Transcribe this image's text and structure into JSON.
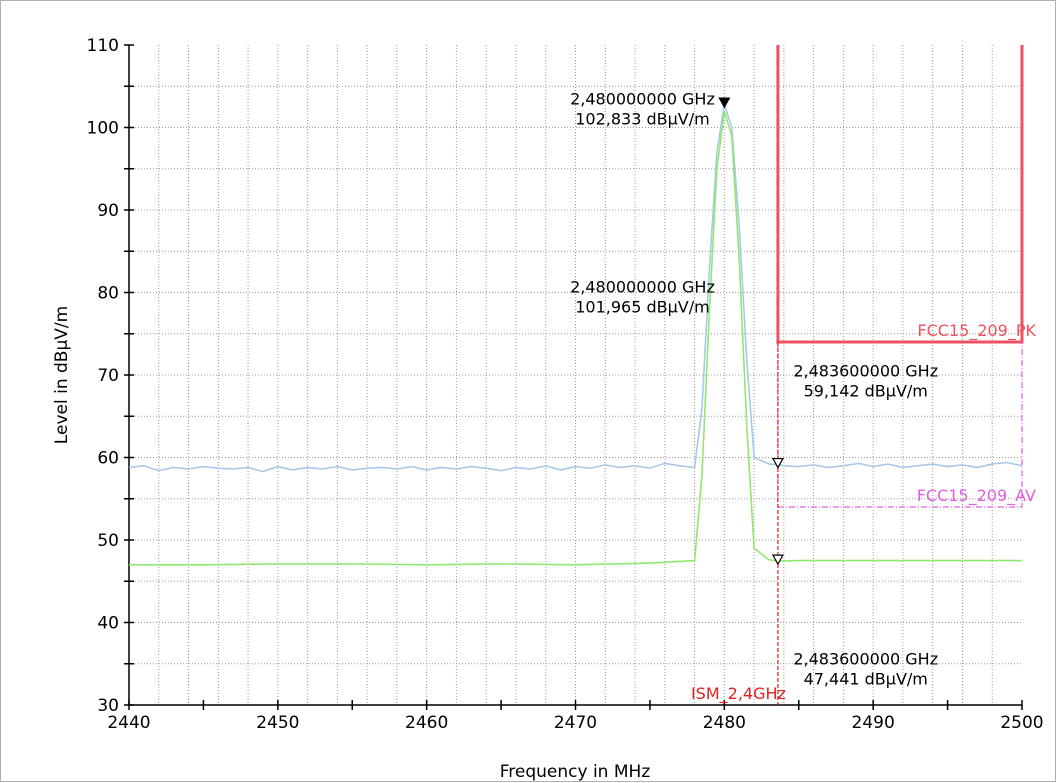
{
  "chart_data": {
    "type": "line",
    "title": "",
    "xlabel": "Frequency in MHz",
    "ylabel": "Level in dBµV/m",
    "xlim": [
      2440,
      2500
    ],
    "ylim": [
      30,
      110
    ],
    "x_ticks": [
      2440,
      2450,
      2460,
      2470,
      2480,
      2490,
      2500
    ],
    "y_ticks": [
      30,
      40,
      50,
      60,
      70,
      80,
      90,
      100,
      110
    ],
    "grid": true,
    "colors": {
      "peak": "#a8c8ea",
      "average": "#90e870",
      "fcc_pk": "#f05060",
      "fcc_av": "#e060e0",
      "ism": "#e02020"
    },
    "series": [
      {
        "key": "peak",
        "x": [
          2440,
          2441,
          2442,
          2443,
          2444,
          2445,
          2446,
          2447,
          2448,
          2449,
          2450,
          2451,
          2452,
          2453,
          2454,
          2455,
          2456,
          2457,
          2458,
          2459,
          2460,
          2461,
          2462,
          2463,
          2464,
          2465,
          2466,
          2467,
          2468,
          2469,
          2470,
          2471,
          2472,
          2473,
          2474,
          2475,
          2476,
          2477,
          2478,
          2478.5,
          2479,
          2479.5,
          2480,
          2480.5,
          2481,
          2481.5,
          2482,
          2483,
          2483.6,
          2484,
          2485,
          2486,
          2487,
          2488,
          2489,
          2490,
          2491,
          2492,
          2493,
          2494,
          2495,
          2496,
          2497,
          2498,
          2499,
          2500
        ],
        "y": [
          58.8,
          59.0,
          58.4,
          58.8,
          58.6,
          58.9,
          58.7,
          58.6,
          58.8,
          58.3,
          58.9,
          58.5,
          58.8,
          58.6,
          58.9,
          58.5,
          58.7,
          58.8,
          58.6,
          58.9,
          58.5,
          58.8,
          58.6,
          58.9,
          58.7,
          58.4,
          58.8,
          58.6,
          59.0,
          58.5,
          58.9,
          58.7,
          59.1,
          58.8,
          59.0,
          58.7,
          59.3,
          59.0,
          58.8,
          66.0,
          83.0,
          97.0,
          102.8,
          100.0,
          88.0,
          72.0,
          60.0,
          59.2,
          59.142,
          59.0,
          58.9,
          59.1,
          58.8,
          59.0,
          59.3,
          58.9,
          59.2,
          58.8,
          59.0,
          59.2,
          58.9,
          59.1,
          58.8,
          59.2,
          59.4,
          59.0
        ]
      },
      {
        "key": "average",
        "x": [
          2440,
          2445,
          2450,
          2455,
          2460,
          2465,
          2470,
          2475,
          2478,
          2478.5,
          2479,
          2479.5,
          2480,
          2480.5,
          2481,
          2481.5,
          2482,
          2483,
          2483.6,
          2485,
          2490,
          2495,
          2500
        ],
        "y": [
          47.0,
          47.0,
          47.1,
          47.1,
          47.0,
          47.1,
          47.0,
          47.2,
          47.5,
          58.0,
          78.0,
          95.0,
          101.965,
          99.0,
          84.0,
          64.0,
          49.0,
          47.6,
          47.441,
          47.5,
          47.5,
          47.5,
          47.5
        ]
      }
    ],
    "limit_lines": [
      {
        "key": "fcc_pk",
        "name": "FCC15_209_PK",
        "x_start": 2483.6,
        "x_end": 2500,
        "y": 74,
        "y_top": 110
      },
      {
        "key": "fcc_av",
        "name": "FCC15_209_AV",
        "x_start": 2483.6,
        "x_end": 2500,
        "y": 54,
        "y_top": 74
      }
    ],
    "vertical_markers": [
      {
        "key": "ism",
        "name": "ISM_2,4GHz",
        "x": 2483.6
      }
    ],
    "annotations": [
      {
        "freq_label": "2,480000000 GHz",
        "level_label": "102,833 dBµV/m",
        "x": 2480,
        "y": 102.833,
        "marker": "filled",
        "text_x": 2474.5,
        "text_y": 102.8
      },
      {
        "freq_label": "2,480000000 GHz",
        "level_label": "101,965 dBµV/m",
        "x": 2480,
        "y": 101.965,
        "marker": "none",
        "text_x": 2474.5,
        "text_y": 80.0
      },
      {
        "freq_label": "2,483600000 GHz",
        "level_label": "59,142 dBµV/m",
        "x": 2483.6,
        "y": 59.142,
        "marker": "open",
        "text_x": 2489.5,
        "text_y": 69.8
      },
      {
        "freq_label": "2,483600000 GHz",
        "level_label": "47,441 dBµV/m",
        "x": 2483.6,
        "y": 47.441,
        "marker": "open",
        "text_x": 2489.5,
        "text_y": 34.9
      }
    ]
  }
}
